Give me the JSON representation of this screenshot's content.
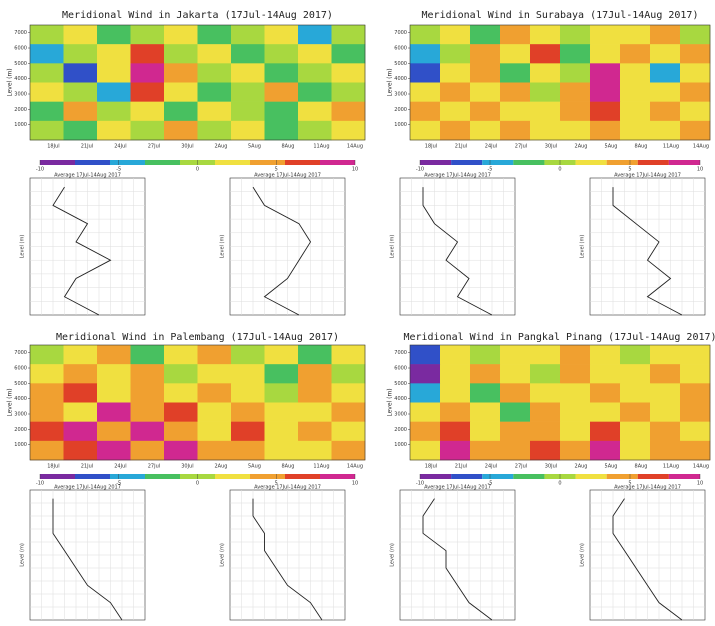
{
  "chart_data": [
    {
      "type": "heatmap",
      "title": "Meridional Wind in Jakarta (17Jul-14Aug 2017)",
      "heat": [
        [
          0,
          2,
          -2,
          0,
          3,
          -2,
          0,
          2,
          -4,
          0
        ],
        [
          -4,
          0,
          3,
          6,
          0,
          2,
          -2,
          0,
          2,
          -2
        ],
        [
          0,
          -6,
          2,
          8,
          4,
          0,
          3,
          -2,
          0,
          2
        ],
        [
          2,
          0,
          -4,
          6,
          2,
          -2,
          0,
          4,
          -2,
          0
        ],
        [
          -2,
          4,
          0,
          2,
          -2,
          3,
          0,
          -2,
          2,
          4
        ],
        [
          0,
          -2,
          2,
          0,
          4,
          0,
          2,
          -2,
          0,
          2
        ]
      ],
      "profiles": [
        [
          1,
          -2,
          -1,
          2,
          -1,
          0,
          -3,
          -2
        ],
        [
          1,
          -2,
          0,
          1,
          2,
          1,
          -2,
          -3
        ]
      ]
    },
    {
      "type": "heatmap",
      "title": "Meridional Wind in Surabaya (17Jul-14Aug 2017)",
      "heat": [
        [
          0,
          3,
          -2,
          4,
          2,
          0,
          3,
          2,
          4,
          0
        ],
        [
          -4,
          0,
          5,
          2,
          6,
          -2,
          3,
          5,
          2,
          4
        ],
        [
          -6,
          2,
          4,
          -2,
          3,
          0,
          8,
          2,
          -4,
          3
        ],
        [
          2,
          5,
          3,
          4,
          0,
          5,
          8,
          3,
          2,
          5
        ],
        [
          4,
          2,
          5,
          3,
          2,
          4,
          6,
          2,
          5,
          3
        ],
        [
          3,
          4,
          2,
          5,
          3,
          2,
          4,
          3,
          2,
          4
        ]
      ],
      "profiles": [
        [
          3,
          0,
          1,
          -1,
          0,
          -2,
          -3,
          -3
        ],
        [
          3,
          0,
          2,
          0,
          1,
          -1,
          -3,
          -3
        ]
      ]
    },
    {
      "type": "heatmap",
      "title": "Meridional Wind in Palembang (17Jul-14Aug 2017)",
      "heat": [
        [
          0,
          2,
          4,
          -2,
          2,
          4,
          0,
          3,
          -2,
          2
        ],
        [
          2,
          5,
          3,
          4,
          0,
          2,
          3,
          -2,
          4,
          0
        ],
        [
          4,
          6,
          2,
          5,
          3,
          4,
          2,
          0,
          5,
          2
        ],
        [
          5,
          3,
          8,
          4,
          6,
          2,
          5,
          3,
          2,
          4
        ],
        [
          6,
          8,
          4,
          8,
          5,
          3,
          6,
          2,
          4,
          3
        ],
        [
          4,
          6,
          8,
          5,
          8,
          4,
          5,
          3,
          2,
          5
        ]
      ],
      "profiles": [
        [
          3,
          2,
          0,
          -1,
          -2,
          -3,
          -3,
          -3
        ],
        [
          3,
          2,
          0,
          -1,
          -2,
          -2,
          -3,
          -3
        ]
      ]
    },
    {
      "type": "heatmap",
      "title": "Meridional Wind in Pangkal Pinang (17Jul-14Aug 2017)",
      "heat": [
        [
          -6,
          2,
          0,
          3,
          2,
          4,
          2,
          0,
          2,
          3
        ],
        [
          -8,
          3,
          4,
          2,
          0,
          5,
          2,
          3,
          4,
          2
        ],
        [
          -4,
          2,
          -2,
          4,
          2,
          3,
          5,
          2,
          3,
          4
        ],
        [
          2,
          5,
          3,
          -2,
          4,
          2,
          3,
          4,
          2,
          5
        ],
        [
          4,
          6,
          2,
          4,
          5,
          3,
          6,
          2,
          4,
          3
        ],
        [
          3,
          8,
          4,
          5,
          6,
          4,
          8,
          3,
          5,
          4
        ]
      ],
      "profiles": [
        [
          3,
          1,
          0,
          -1,
          -1,
          -3,
          -3,
          -2
        ],
        [
          3,
          1,
          0,
          -1,
          -2,
          -3,
          -3,
          -2
        ]
      ]
    }
  ],
  "ylabel": "Level (m)",
  "yticks": [
    1000,
    2000,
    3000,
    4000,
    5000,
    6000,
    7000
  ],
  "ylim": [
    0,
    7500
  ],
  "xticks": [
    "18Jul",
    "21Jul",
    "24Jul",
    "27Jul",
    "30Jul",
    "2Aug",
    "5Aug",
    "8Aug",
    "11Aug",
    "14Aug"
  ],
  "profile_title": "Average 17Jul-14Aug 2017",
  "profile_levels": [
    0,
    1000,
    2000,
    3000,
    4000,
    5000,
    6000,
    7000
  ],
  "profile_xlim": [
    -5,
    5
  ],
  "clim": [
    -10,
    10
  ],
  "cticks": [
    -10,
    -5,
    0,
    5,
    10
  ],
  "colors": [
    "#7a2aa0",
    "#3050c8",
    "#28a8d8",
    "#48c060",
    "#a8d840",
    "#f0e040",
    "#f0a030",
    "#e04028",
    "#d02890"
  ]
}
